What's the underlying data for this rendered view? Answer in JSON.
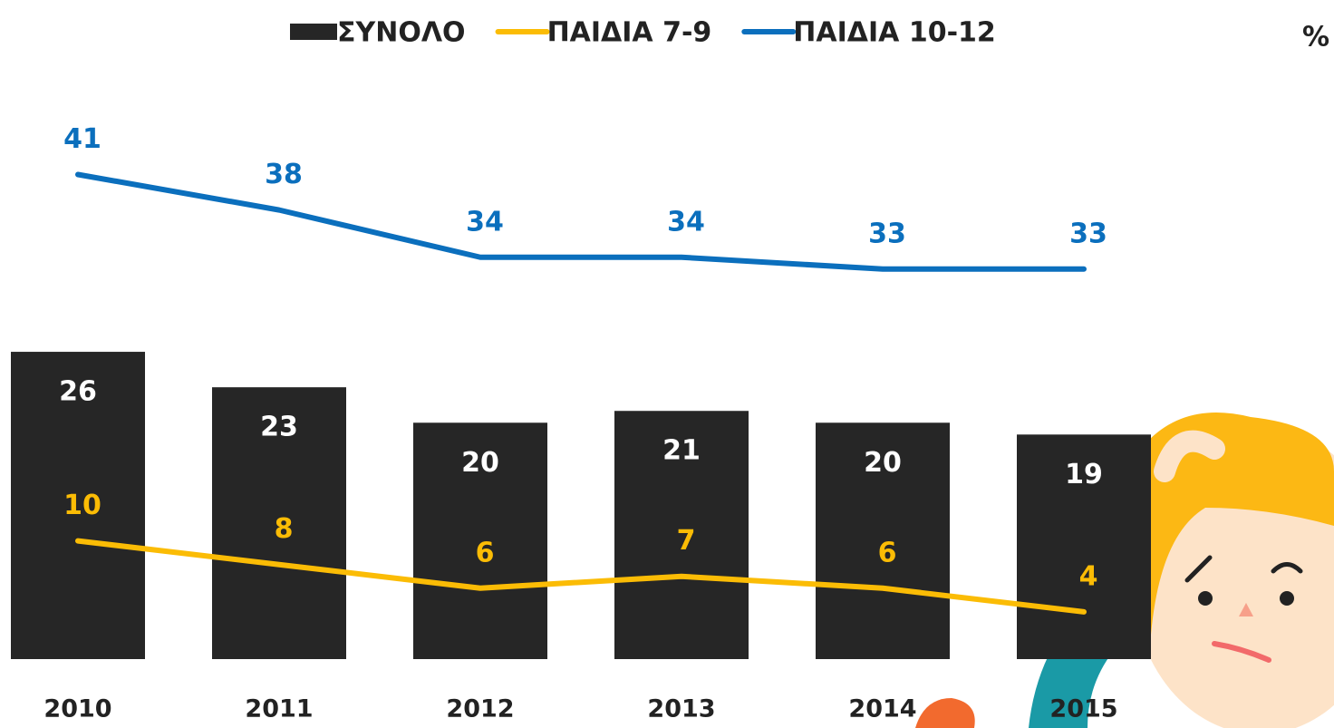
{
  "chart_data": {
    "type": "bar",
    "unit": "%",
    "categories": [
      "2010",
      "2011",
      "2012",
      "2013",
      "2014",
      "2015"
    ],
    "series": [
      {
        "name": "ΣΥΝΟΛΟ",
        "type": "bar",
        "color": "#262626",
        "values": [
          26,
          23,
          20,
          21,
          20,
          19
        ]
      },
      {
        "name": "ΠΑΙΔΙΑ 7-9",
        "type": "line",
        "color": "#fbbc05",
        "values": [
          10,
          8,
          6,
          7,
          6,
          4
        ]
      },
      {
        "name": "ΠΑΙΔΙΑ 10-12",
        "type": "line",
        "color": "#0b6fbd",
        "values": [
          41,
          38,
          34,
          34,
          33,
          33
        ]
      }
    ],
    "ylim": [
      0,
      55
    ]
  }
}
